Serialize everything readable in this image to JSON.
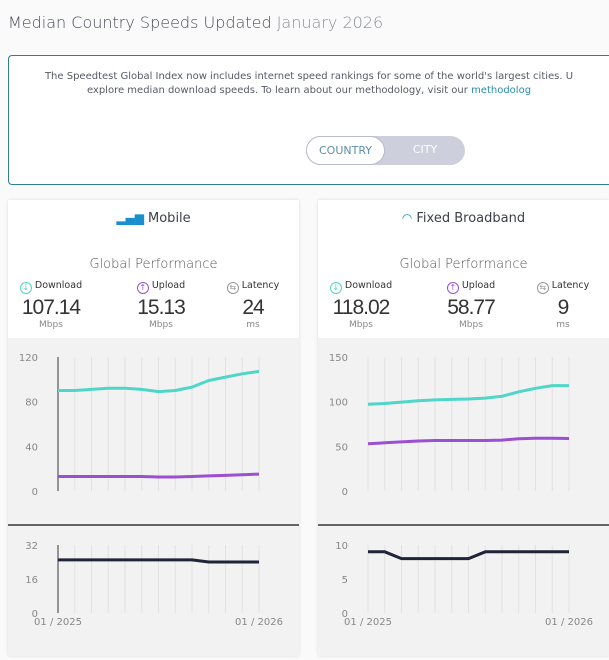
{
  "header": {
    "title": "Median Country Speeds Updated",
    "date": "January 2026"
  },
  "info": {
    "line1": "The Speedtest Global Index now includes internet speed rankings for some of the world's largest cities. U",
    "line2": "explore median download speeds. To learn about our methodology, visit our ",
    "link": "methodolog"
  },
  "toggle": {
    "country": "COUNTRY",
    "city": "CITY",
    "selected": "COUNTRY"
  },
  "colors": {
    "download": "#4fd6c8",
    "upload": "#9b4fd1",
    "latency": "#1f2438",
    "accent": "#1a8fd0"
  },
  "cards": [
    {
      "title": "Mobile",
      "icon": "signal-bars-icon",
      "subtitle": "Global Performance",
      "metrics": [
        {
          "label": "Download",
          "value": "107.14",
          "unit": "Mbps"
        },
        {
          "label": "Upload",
          "value": "15.13",
          "unit": "Mbps"
        },
        {
          "label": "Latency",
          "value": "24",
          "unit": "ms"
        }
      ]
    },
    {
      "title": "Fixed Broadband",
      "icon": "wifi-icon",
      "subtitle": "Global Performance",
      "metrics": [
        {
          "label": "Download",
          "value": "118.02",
          "unit": "Mbps"
        },
        {
          "label": "Upload",
          "value": "58.77",
          "unit": "Mbps"
        },
        {
          "label": "Latency",
          "value": "9",
          "unit": "ms"
        }
      ]
    }
  ],
  "chart_data": [
    {
      "type": "line",
      "name": "mobile-speed",
      "ylim": [
        0,
        120
      ],
      "yticks": [
        "0",
        "40",
        "80",
        "120"
      ],
      "x_labels": [
        "01 / 2025",
        "01 / 2026"
      ],
      "series": [
        {
          "values": [
            90,
            90,
            91,
            92,
            92,
            91,
            89,
            90,
            93,
            99,
            102,
            105,
            107.14
          ]
        },
        {
          "values": [
            13,
            13,
            13,
            13,
            13,
            13,
            12.5,
            12.5,
            13,
            13.5,
            14,
            14.5,
            15.13
          ]
        }
      ]
    },
    {
      "type": "line",
      "name": "mobile-latency",
      "ylim": [
        0,
        32
      ],
      "yticks": [
        "0",
        "16",
        "32"
      ],
      "series": [
        {
          "values": [
            25,
            25,
            25,
            25,
            25,
            25,
            25,
            25,
            25,
            24,
            24,
            24,
            24
          ]
        }
      ]
    },
    {
      "type": "line",
      "name": "fixed-speed",
      "ylim": [
        0,
        150
      ],
      "yticks": [
        "0",
        "50",
        "100",
        "150"
      ],
      "x_labels": [
        "01 / 2025",
        "01 / 2026"
      ],
      "series": [
        {
          "values": [
            97,
            98,
            99.5,
            101,
            102,
            102.5,
            103,
            104,
            106,
            111,
            115,
            118,
            118.02
          ]
        },
        {
          "values": [
            53,
            54,
            55,
            56,
            56.5,
            56.5,
            56.5,
            56.5,
            57,
            58.5,
            59,
            59,
            58.77
          ]
        }
      ]
    },
    {
      "type": "line",
      "name": "fixed-latency",
      "ylim": [
        0,
        10
      ],
      "yticks": [
        "0",
        "5",
        "10"
      ],
      "series": [
        {
          "values": [
            9,
            9,
            8,
            8,
            8,
            8,
            8,
            9,
            9,
            9,
            9,
            9,
            9
          ]
        }
      ]
    }
  ]
}
